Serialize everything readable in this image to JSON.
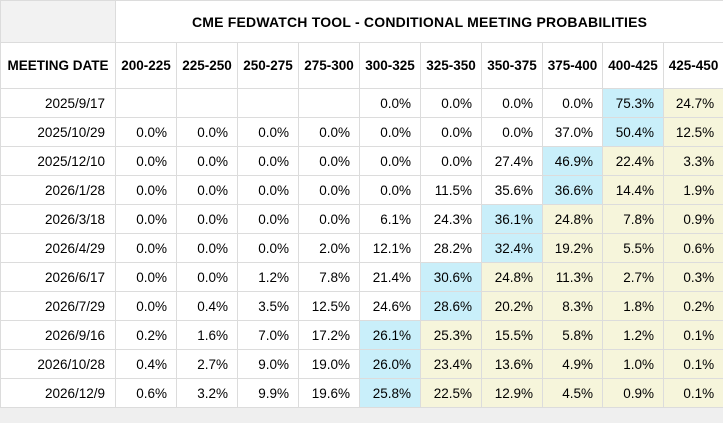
{
  "title": "CME FEDWATCH TOOL - CONDITIONAL MEETING PROBABILITIES",
  "colors": {
    "highlight_blue": "#c9effa",
    "highlight_yellow": "#f6f5db",
    "corner_background": "#f2f2f2",
    "border": "#dcdcdc"
  },
  "table": {
    "date_column_header": "MEETING DATE",
    "rate_columns": [
      "200-225",
      "225-250",
      "250-275",
      "275-300",
      "300-325",
      "325-350",
      "350-375",
      "375-400",
      "400-425",
      "425-450"
    ],
    "rows": [
      {
        "date": "2025/9/17",
        "cells": [
          {
            "v": "",
            "hl": "none"
          },
          {
            "v": "",
            "hl": "none"
          },
          {
            "v": "",
            "hl": "none"
          },
          {
            "v": "",
            "hl": "none"
          },
          {
            "v": "0.0%",
            "hl": "none"
          },
          {
            "v": "0.0%",
            "hl": "none"
          },
          {
            "v": "0.0%",
            "hl": "none"
          },
          {
            "v": "0.0%",
            "hl": "none"
          },
          {
            "v": "75.3%",
            "hl": "blue"
          },
          {
            "v": "24.7%",
            "hl": "yellow"
          }
        ]
      },
      {
        "date": "2025/10/29",
        "cells": [
          {
            "v": "0.0%",
            "hl": "none"
          },
          {
            "v": "0.0%",
            "hl": "none"
          },
          {
            "v": "0.0%",
            "hl": "none"
          },
          {
            "v": "0.0%",
            "hl": "none"
          },
          {
            "v": "0.0%",
            "hl": "none"
          },
          {
            "v": "0.0%",
            "hl": "none"
          },
          {
            "v": "0.0%",
            "hl": "none"
          },
          {
            "v": "37.0%",
            "hl": "none"
          },
          {
            "v": "50.4%",
            "hl": "blue"
          },
          {
            "v": "12.5%",
            "hl": "yellow"
          }
        ]
      },
      {
        "date": "2025/12/10",
        "cells": [
          {
            "v": "0.0%",
            "hl": "none"
          },
          {
            "v": "0.0%",
            "hl": "none"
          },
          {
            "v": "0.0%",
            "hl": "none"
          },
          {
            "v": "0.0%",
            "hl": "none"
          },
          {
            "v": "0.0%",
            "hl": "none"
          },
          {
            "v": "0.0%",
            "hl": "none"
          },
          {
            "v": "27.4%",
            "hl": "none"
          },
          {
            "v": "46.9%",
            "hl": "blue"
          },
          {
            "v": "22.4%",
            "hl": "yellow"
          },
          {
            "v": "3.3%",
            "hl": "yellow"
          }
        ]
      },
      {
        "date": "2026/1/28",
        "cells": [
          {
            "v": "0.0%",
            "hl": "none"
          },
          {
            "v": "0.0%",
            "hl": "none"
          },
          {
            "v": "0.0%",
            "hl": "none"
          },
          {
            "v": "0.0%",
            "hl": "none"
          },
          {
            "v": "0.0%",
            "hl": "none"
          },
          {
            "v": "11.5%",
            "hl": "none"
          },
          {
            "v": "35.6%",
            "hl": "none"
          },
          {
            "v": "36.6%",
            "hl": "blue"
          },
          {
            "v": "14.4%",
            "hl": "yellow"
          },
          {
            "v": "1.9%",
            "hl": "yellow"
          }
        ]
      },
      {
        "date": "2026/3/18",
        "cells": [
          {
            "v": "0.0%",
            "hl": "none"
          },
          {
            "v": "0.0%",
            "hl": "none"
          },
          {
            "v": "0.0%",
            "hl": "none"
          },
          {
            "v": "0.0%",
            "hl": "none"
          },
          {
            "v": "6.1%",
            "hl": "none"
          },
          {
            "v": "24.3%",
            "hl": "none"
          },
          {
            "v": "36.1%",
            "hl": "blue"
          },
          {
            "v": "24.8%",
            "hl": "yellow"
          },
          {
            "v": "7.8%",
            "hl": "yellow"
          },
          {
            "v": "0.9%",
            "hl": "yellow"
          }
        ]
      },
      {
        "date": "2026/4/29",
        "cells": [
          {
            "v": "0.0%",
            "hl": "none"
          },
          {
            "v": "0.0%",
            "hl": "none"
          },
          {
            "v": "0.0%",
            "hl": "none"
          },
          {
            "v": "2.0%",
            "hl": "none"
          },
          {
            "v": "12.1%",
            "hl": "none"
          },
          {
            "v": "28.2%",
            "hl": "none"
          },
          {
            "v": "32.4%",
            "hl": "blue"
          },
          {
            "v": "19.2%",
            "hl": "yellow"
          },
          {
            "v": "5.5%",
            "hl": "yellow"
          },
          {
            "v": "0.6%",
            "hl": "yellow"
          }
        ]
      },
      {
        "date": "2026/6/17",
        "cells": [
          {
            "v": "0.0%",
            "hl": "none"
          },
          {
            "v": "0.0%",
            "hl": "none"
          },
          {
            "v": "1.2%",
            "hl": "none"
          },
          {
            "v": "7.8%",
            "hl": "none"
          },
          {
            "v": "21.4%",
            "hl": "none"
          },
          {
            "v": "30.6%",
            "hl": "blue"
          },
          {
            "v": "24.8%",
            "hl": "yellow"
          },
          {
            "v": "11.3%",
            "hl": "yellow"
          },
          {
            "v": "2.7%",
            "hl": "yellow"
          },
          {
            "v": "0.3%",
            "hl": "yellow"
          }
        ]
      },
      {
        "date": "2026/7/29",
        "cells": [
          {
            "v": "0.0%",
            "hl": "none"
          },
          {
            "v": "0.4%",
            "hl": "none"
          },
          {
            "v": "3.5%",
            "hl": "none"
          },
          {
            "v": "12.5%",
            "hl": "none"
          },
          {
            "v": "24.6%",
            "hl": "none"
          },
          {
            "v": "28.6%",
            "hl": "blue"
          },
          {
            "v": "20.2%",
            "hl": "yellow"
          },
          {
            "v": "8.3%",
            "hl": "yellow"
          },
          {
            "v": "1.8%",
            "hl": "yellow"
          },
          {
            "v": "0.2%",
            "hl": "yellow"
          }
        ]
      },
      {
        "date": "2026/9/16",
        "cells": [
          {
            "v": "0.2%",
            "hl": "none"
          },
          {
            "v": "1.6%",
            "hl": "none"
          },
          {
            "v": "7.0%",
            "hl": "none"
          },
          {
            "v": "17.2%",
            "hl": "none"
          },
          {
            "v": "26.1%",
            "hl": "blue"
          },
          {
            "v": "25.3%",
            "hl": "yellow"
          },
          {
            "v": "15.5%",
            "hl": "yellow"
          },
          {
            "v": "5.8%",
            "hl": "yellow"
          },
          {
            "v": "1.2%",
            "hl": "yellow"
          },
          {
            "v": "0.1%",
            "hl": "yellow"
          }
        ]
      },
      {
        "date": "2026/10/28",
        "cells": [
          {
            "v": "0.4%",
            "hl": "none"
          },
          {
            "v": "2.7%",
            "hl": "none"
          },
          {
            "v": "9.0%",
            "hl": "none"
          },
          {
            "v": "19.0%",
            "hl": "none"
          },
          {
            "v": "26.0%",
            "hl": "blue"
          },
          {
            "v": "23.4%",
            "hl": "yellow"
          },
          {
            "v": "13.6%",
            "hl": "yellow"
          },
          {
            "v": "4.9%",
            "hl": "yellow"
          },
          {
            "v": "1.0%",
            "hl": "yellow"
          },
          {
            "v": "0.1%",
            "hl": "yellow"
          }
        ]
      },
      {
        "date": "2026/12/9",
        "cells": [
          {
            "v": "0.6%",
            "hl": "none"
          },
          {
            "v": "3.2%",
            "hl": "none"
          },
          {
            "v": "9.9%",
            "hl": "none"
          },
          {
            "v": "19.6%",
            "hl": "none"
          },
          {
            "v": "25.8%",
            "hl": "blue"
          },
          {
            "v": "22.5%",
            "hl": "yellow"
          },
          {
            "v": "12.9%",
            "hl": "yellow"
          },
          {
            "v": "4.5%",
            "hl": "yellow"
          },
          {
            "v": "0.9%",
            "hl": "yellow"
          },
          {
            "v": "0.1%",
            "hl": "yellow"
          }
        ]
      }
    ]
  }
}
